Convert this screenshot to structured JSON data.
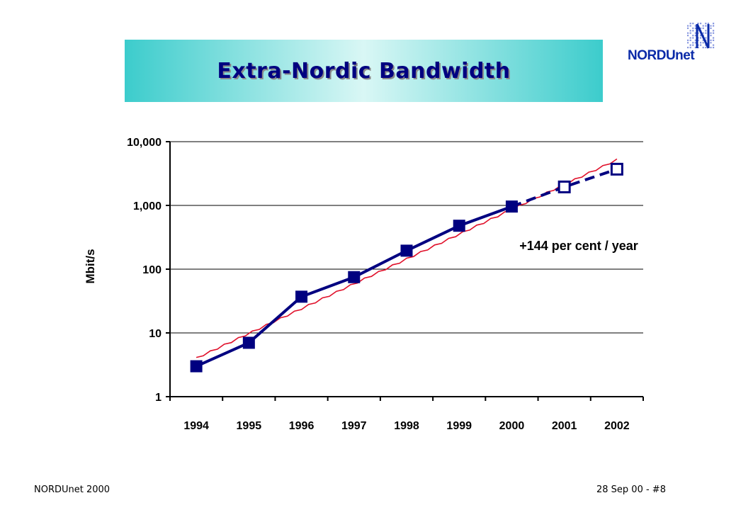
{
  "slide": {
    "title": "Extra-Nordic Bandwidth",
    "logo_text": "NORDUnet",
    "footer_left": "NORDUnet 2000",
    "footer_right": "28 Sep 00 - #8"
  },
  "colors": {
    "banner_edge": "#3ccccc",
    "banner_center": "#d9f7f5",
    "title": "#000080",
    "series": "#000080",
    "trend": "#e0102a",
    "logo": "#0a2aa8"
  },
  "chart_data": {
    "type": "line",
    "title": "",
    "xlabel": "",
    "ylabel": "Mbit/s",
    "yscale": "log",
    "ylim": [
      1,
      10000
    ],
    "yticks": [
      1,
      10,
      100,
      1000,
      10000
    ],
    "ytick_labels": [
      "1",
      "10",
      "100",
      "1,000",
      "10,000"
    ],
    "categories": [
      "1994",
      "1995",
      "1996",
      "1997",
      "1998",
      "1999",
      "2000",
      "2001",
      "2002"
    ],
    "grid": "horizontal",
    "series": [
      {
        "name": "",
        "style": "solid line, filled square markers",
        "x": [
          "1994",
          "1995",
          "1996",
          "1997",
          "1998",
          "1999",
          "2000"
        ],
        "values": [
          3,
          7,
          37,
          75,
          195,
          480,
          960
        ]
      },
      {
        "name": "",
        "style": "dashed line, hollow square markers (forecast)",
        "x": [
          "2000",
          "2001",
          "2002"
        ],
        "values": [
          960,
          1950,
          3700
        ]
      },
      {
        "name": "",
        "style": "thin red trend line",
        "x": [
          "1994",
          "2002"
        ],
        "values": [
          4,
          5200
        ]
      }
    ],
    "annotations": [
      {
        "text": "+144 per cent / year"
      }
    ]
  }
}
